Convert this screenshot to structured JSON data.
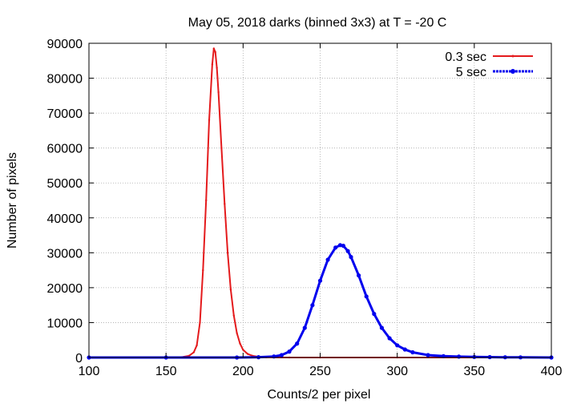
{
  "chart_data": {
    "type": "line",
    "title": "May 05, 2018 darks (binned 3x3) at T = -20 C",
    "xlabel": "Counts/2 per pixel",
    "ylabel": "Number of pixels",
    "xlim": [
      100,
      400
    ],
    "ylim": [
      0,
      90000
    ],
    "x_ticks": [
      100,
      150,
      200,
      250,
      300,
      350,
      400
    ],
    "y_ticks": [
      0,
      10000,
      20000,
      30000,
      40000,
      50000,
      60000,
      70000,
      80000,
      90000
    ],
    "x_tick_labels": [
      "100",
      "150",
      "200",
      "250",
      "300",
      "350",
      "400"
    ],
    "y_tick_labels": [
      "0",
      "10000",
      "20000",
      "30000",
      "40000",
      "50000",
      "60000",
      "70000",
      "80000",
      "90000"
    ],
    "grid": true,
    "legend_position": "top-right",
    "series": [
      {
        "name": "0.3 sec",
        "color": "#e41a1c",
        "x": [
          100,
          150,
          160,
          165,
          168,
          170,
          172,
          174,
          176,
          178,
          180,
          181,
          182,
          183,
          184,
          186,
          188,
          190,
          192,
          194,
          196,
          198,
          200,
          203,
          206,
          210,
          215,
          220,
          230,
          250,
          300,
          350,
          400
        ],
        "y": [
          0,
          0,
          100,
          500,
          1500,
          3500,
          10000,
          25000,
          45000,
          68000,
          84000,
          88500,
          87500,
          83000,
          76000,
          60000,
          44000,
          30000,
          19500,
          12000,
          7000,
          4000,
          2200,
          1000,
          500,
          200,
          80,
          30,
          10,
          0,
          0,
          0,
          0
        ]
      },
      {
        "name": "5 sec",
        "color": "#0000ee",
        "x": [
          100,
          150,
          196,
          210,
          220,
          225,
          230,
          235,
          240,
          245,
          250,
          255,
          260,
          263,
          265,
          268,
          270,
          275,
          280,
          285,
          290,
          295,
          300,
          305,
          310,
          320,
          330,
          340,
          350,
          360,
          370,
          380,
          400
        ],
        "y": [
          0,
          0,
          0,
          100,
          300,
          700,
          1700,
          4000,
          8500,
          15000,
          22000,
          28000,
          31500,
          32200,
          32000,
          30500,
          28800,
          23500,
          17500,
          12500,
          8500,
          5500,
          3500,
          2300,
          1500,
          700,
          400,
          250,
          170,
          110,
          70,
          40,
          10
        ]
      }
    ]
  }
}
